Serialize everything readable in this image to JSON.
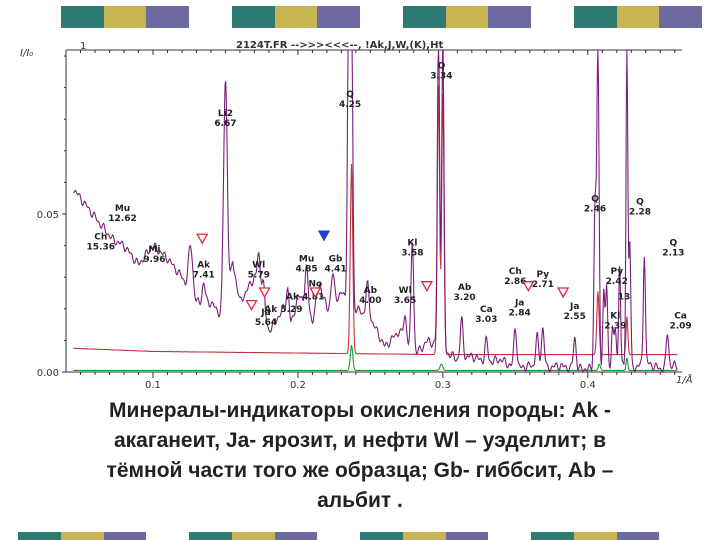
{
  "colors": {
    "stripes_top": [
      "#ffffff",
      "#2f7a73",
      "#c8b450",
      "#6c6aa0",
      "#ffffff",
      "#2f7a73",
      "#c8b450",
      "#6c6aa0",
      "#ffffff",
      "#2f7a73",
      "#c8b450",
      "#6c6aa0",
      "#ffffff",
      "#2f7a73",
      "#c8b450",
      "#6c6aa0"
    ],
    "stripes_bottom": [
      "#2f7a73",
      "#c8b450",
      "#6c6aa0",
      "#ffffff",
      "#2f7a73",
      "#c8b450",
      "#6c6aa0",
      "#ffffff",
      "#2f7a73",
      "#c8b450",
      "#6c6aa0",
      "#ffffff",
      "#2f7a73",
      "#c8b450",
      "#6c6aa0",
      "#ffffff"
    ],
    "purple": "#7a1f78",
    "red": "#c0343c",
    "green": "#1f9a2c",
    "marker_red": "#e0283c",
    "marker_blue": "#2040d0"
  },
  "chart_data": {
    "type": "line",
    "header": "2124T.FR  -->>><<<--, !Ak,J,W,(K),Ht",
    "header_marker": "1",
    "ylabel": "I/I₀",
    "xlabel": "1/Å",
    "xlim": [
      0.04,
      0.465
    ],
    "ylim": [
      0,
      0.1
    ],
    "x_ticks": [
      0.1,
      0.2,
      0.3,
      0.4
    ],
    "y_ticks": [
      {
        "value": 0.05,
        "label": "0.05"
      },
      {
        "value": 0.0,
        "label": "0.00"
      }
    ],
    "series": [
      {
        "color": "purple",
        "baseline": 0.0005,
        "points": [
          [
            0.045,
            0.058
          ],
          [
            0.06,
            0.049
          ],
          [
            0.072,
            0.042
          ],
          [
            0.08,
            0.04
          ],
          [
            0.09,
            0.034
          ],
          [
            0.1,
            0.04
          ],
          [
            0.11,
            0.036
          ],
          [
            0.12,
            0.03
          ],
          [
            0.13,
            0.022
          ],
          [
            0.14,
            0.022
          ],
          [
            0.15,
            0.016
          ],
          [
            0.155,
            0.035
          ],
          [
            0.16,
            0.022
          ],
          [
            0.17,
            0.03
          ],
          [
            0.18,
            0.013
          ],
          [
            0.19,
            0.02
          ],
          [
            0.195,
            0.014
          ],
          [
            0.2,
            0.024
          ],
          [
            0.205,
            0.022
          ],
          [
            0.21,
            0.016
          ],
          [
            0.215,
            0.028
          ],
          [
            0.22,
            0.02
          ],
          [
            0.23,
            0.025
          ],
          [
            0.24,
            0.02
          ],
          [
            0.25,
            0.017
          ],
          [
            0.26,
            0.008
          ],
          [
            0.27,
            0.013
          ],
          [
            0.28,
            0.005
          ],
          [
            0.29,
            0.01
          ],
          [
            0.3,
            0.007
          ],
          [
            0.31,
            0.004
          ],
          [
            0.32,
            0.005
          ],
          [
            0.33,
            0.003
          ],
          [
            0.34,
            0.004
          ],
          [
            0.35,
            0.001
          ],
          [
            0.36,
            0.002
          ],
          [
            0.37,
            0.001
          ],
          [
            0.38,
            0.002
          ],
          [
            0.39,
            0.001
          ],
          [
            0.4,
            0.001
          ],
          [
            0.41,
            0.001
          ],
          [
            0.42,
            0.002
          ],
          [
            0.43,
            0.001
          ],
          [
            0.44,
            0.003
          ],
          [
            0.45,
            0.001
          ],
          [
            0.46,
            0.002
          ]
        ]
      },
      {
        "color": "red",
        "baseline": 0.006,
        "points": [
          [
            0.045,
            0.0075
          ],
          [
            0.1,
            0.0065
          ],
          [
            0.2,
            0.006
          ],
          [
            0.3,
            0.0055
          ],
          [
            0.4,
            0.0055
          ],
          [
            0.46,
            0.0055
          ]
        ]
      },
      {
        "color": "green",
        "baseline": 0.0005,
        "points": [
          [
            0.045,
            0.0005
          ],
          [
            0.46,
            0.0005
          ]
        ]
      }
    ],
    "peaks": [
      {
        "x": 0.113,
        "h": 0.0,
        "w": 0.002,
        "series": "purple"
      },
      {
        "x": 0.126,
        "h": 0.015,
        "w": 0.002,
        "series": "purple"
      },
      {
        "x": 0.135,
        "h": 0.006,
        "w": 0.0015,
        "series": "purple"
      },
      {
        "x": 0.15,
        "h": 0.076,
        "w": 0.0018,
        "series": "purple"
      },
      {
        "x": 0.173,
        "h": 0.012,
        "w": 0.0016,
        "series": "purple"
      },
      {
        "x": 0.176,
        "h": 0.009,
        "w": 0.0014,
        "series": "purple"
      },
      {
        "x": 0.193,
        "h": 0.01,
        "w": 0.0015,
        "series": "purple"
      },
      {
        "x": 0.206,
        "h": 0.012,
        "w": 0.0015,
        "series": "purple"
      },
      {
        "x": 0.224,
        "h": 0.009,
        "w": 0.0015,
        "series": "purple"
      },
      {
        "x": 0.235,
        "h": 0.101,
        "w": 0.0011,
        "series": "purple"
      },
      {
        "x": 0.237,
        "h": 0.101,
        "w": 0.0011,
        "series": "purple"
      },
      {
        "x": 0.248,
        "h": 0.01,
        "w": 0.0015,
        "series": "purple"
      },
      {
        "x": 0.274,
        "h": 0.008,
        "w": 0.0015,
        "series": "purple"
      },
      {
        "x": 0.279,
        "h": 0.036,
        "w": 0.0013,
        "series": "purple"
      },
      {
        "x": 0.297,
        "h": 0.101,
        "w": 0.0011,
        "series": "purple"
      },
      {
        "x": 0.3,
        "h": 0.101,
        "w": 0.0011,
        "series": "purple"
      },
      {
        "x": 0.313,
        "h": 0.012,
        "w": 0.0014,
        "series": "purple"
      },
      {
        "x": 0.33,
        "h": 0.007,
        "w": 0.0014,
        "series": "purple"
      },
      {
        "x": 0.35,
        "h": 0.013,
        "w": 0.0014,
        "series": "purple"
      },
      {
        "x": 0.365,
        "h": 0.01,
        "w": 0.0014,
        "series": "purple"
      },
      {
        "x": 0.369,
        "h": 0.013,
        "w": 0.0014,
        "series": "purple"
      },
      {
        "x": 0.391,
        "h": 0.01,
        "w": 0.0013,
        "series": "purple"
      },
      {
        "x": 0.405,
        "h": 0.051,
        "w": 0.0011,
        "series": "purple"
      },
      {
        "x": 0.407,
        "h": 0.101,
        "w": 0.0011,
        "series": "purple"
      },
      {
        "x": 0.411,
        "h": 0.024,
        "w": 0.001,
        "series": "purple"
      },
      {
        "x": 0.413,
        "h": 0.026,
        "w": 0.001,
        "series": "purple"
      },
      {
        "x": 0.417,
        "h": 0.012,
        "w": 0.001,
        "series": "purple"
      },
      {
        "x": 0.419,
        "h": 0.012,
        "w": 0.001,
        "series": "purple"
      },
      {
        "x": 0.422,
        "h": 0.034,
        "w": 0.0009,
        "series": "purple"
      },
      {
        "x": 0.427,
        "h": 0.101,
        "w": 0.0009,
        "series": "purple"
      },
      {
        "x": 0.429,
        "h": 0.04,
        "w": 0.0009,
        "series": "purple"
      },
      {
        "x": 0.439,
        "h": 0.035,
        "w": 0.001,
        "series": "purple"
      },
      {
        "x": 0.455,
        "h": 0.011,
        "w": 0.0012,
        "series": "purple"
      },
      {
        "x": 0.237,
        "h": 0.06,
        "w": 0.0012,
        "series": "red"
      },
      {
        "x": 0.297,
        "h": 0.085,
        "w": 0.0011,
        "series": "red"
      },
      {
        "x": 0.3,
        "h": 0.085,
        "w": 0.0011,
        "series": "red"
      },
      {
        "x": 0.407,
        "h": 0.02,
        "w": 0.0011,
        "series": "red"
      },
      {
        "x": 0.427,
        "h": 0.012,
        "w": 0.0009,
        "series": "red"
      },
      {
        "x": 0.237,
        "h": 0.008,
        "w": 0.0012,
        "series": "green"
      },
      {
        "x": 0.299,
        "h": 0.002,
        "w": 0.0013,
        "series": "green"
      },
      {
        "x": 0.408,
        "h": 0.002,
        "w": 0.001,
        "series": "green"
      },
      {
        "x": 0.427,
        "h": 0.004,
        "w": 0.0008,
        "series": "green"
      }
    ],
    "annotations": [
      {
        "text": [
          "Li2",
          "6.67"
        ],
        "x": 0.15,
        "y": 0.081
      },
      {
        "text": [
          "Q",
          "4.25"
        ],
        "x": 0.236,
        "y": 0.087
      },
      {
        "text": [
          "Q",
          "3.34"
        ],
        "x": 0.299,
        "y": 0.096
      },
      {
        "text": [
          "Mu",
          "12.62"
        ],
        "x": 0.079,
        "y": 0.051
      },
      {
        "text": [
          "Ch",
          "15.36"
        ],
        "x": 0.064,
        "y": 0.042
      },
      {
        "text": [
          "Mi",
          "9.96"
        ],
        "x": 0.101,
        "y": 0.038
      },
      {
        "text": [
          "Ak",
          "7.41"
        ],
        "x": 0.135,
        "y": 0.033
      },
      {
        "text": [
          "Wl",
          "5.79"
        ],
        "x": 0.173,
        "y": 0.033
      },
      {
        "text": [
          "Mu",
          "4.85"
        ],
        "x": 0.206,
        "y": 0.035
      },
      {
        "text": [
          "Gb",
          "4.41"
        ],
        "x": 0.226,
        "y": 0.035
      },
      {
        "text": [
          "No"
        ],
        "x": 0.212,
        "y": 0.027
      },
      {
        "text": [
          "Ak 4.81"
        ],
        "x": 0.205,
        "y": 0.023
      },
      {
        "text": [
          "Ak 5.29"
        ],
        "x": 0.19,
        "y": 0.019
      },
      {
        "text": [
          "Ja",
          "5.64"
        ],
        "x": 0.178,
        "y": 0.018
      },
      {
        "text": [
          "Kl",
          "3.58"
        ],
        "x": 0.279,
        "y": 0.04
      },
      {
        "text": [
          "Ab",
          "4.00"
        ],
        "x": 0.25,
        "y": 0.025
      },
      {
        "text": [
          "Wl",
          "3.65"
        ],
        "x": 0.274,
        "y": 0.025
      },
      {
        "text": [
          "Ab",
          "3.20"
        ],
        "x": 0.315,
        "y": 0.026
      },
      {
        "text": [
          "Ch",
          "2.86"
        ],
        "x": 0.35,
        "y": 0.031
      },
      {
        "text": [
          "Py",
          "2.71"
        ],
        "x": 0.369,
        "y": 0.03
      },
      {
        "text": [
          "Ja",
          "2.84"
        ],
        "x": 0.353,
        "y": 0.021
      },
      {
        "text": [
          "Ca",
          "3.03"
        ],
        "x": 0.33,
        "y": 0.019
      },
      {
        "text": [
          "Ja",
          "2.55"
        ],
        "x": 0.391,
        "y": 0.02
      },
      {
        "text": [
          "Q",
          "2.46"
        ],
        "x": 0.405,
        "y": 0.054
      },
      {
        "text": [
          "Q",
          "2.28"
        ],
        "x": 0.436,
        "y": 0.053
      },
      {
        "text": [
          "Q",
          "2.13"
        ],
        "x": 0.459,
        "y": 0.04
      },
      {
        "text": [
          "Py",
          "2.42"
        ],
        "x": 0.42,
        "y": 0.031
      },
      {
        "text": [
          "13"
        ],
        "x": 0.425,
        "y": 0.023
      },
      {
        "text": [
          "Kl",
          "2.39"
        ],
        "x": 0.419,
        "y": 0.017
      },
      {
        "text": [
          "Ca",
          "2.09"
        ],
        "x": 0.464,
        "y": 0.017
      }
    ],
    "markers": [
      {
        "x": 0.134,
        "y": 0.042,
        "color": "red"
      },
      {
        "x": 0.177,
        "y": 0.025,
        "color": "red"
      },
      {
        "x": 0.168,
        "y": 0.021,
        "color": "red"
      },
      {
        "x": 0.212,
        "y": 0.025,
        "color": "red"
      },
      {
        "x": 0.218,
        "y": 0.043,
        "color": "blue"
      },
      {
        "x": 0.289,
        "y": 0.027,
        "color": "red"
      },
      {
        "x": 0.359,
        "y": 0.027,
        "color": "red"
      },
      {
        "x": 0.383,
        "y": 0.025,
        "color": "red"
      }
    ]
  },
  "caption": {
    "lines": [
      "Минералы-индикаторы окисления породы: Ak -",
      "акаганеит, Ja- ярозит, и нефти Wl – уэделлит; в",
      "тёмной части того же образца; Gb- гиббсит, Ab –",
      "альбит ."
    ]
  }
}
